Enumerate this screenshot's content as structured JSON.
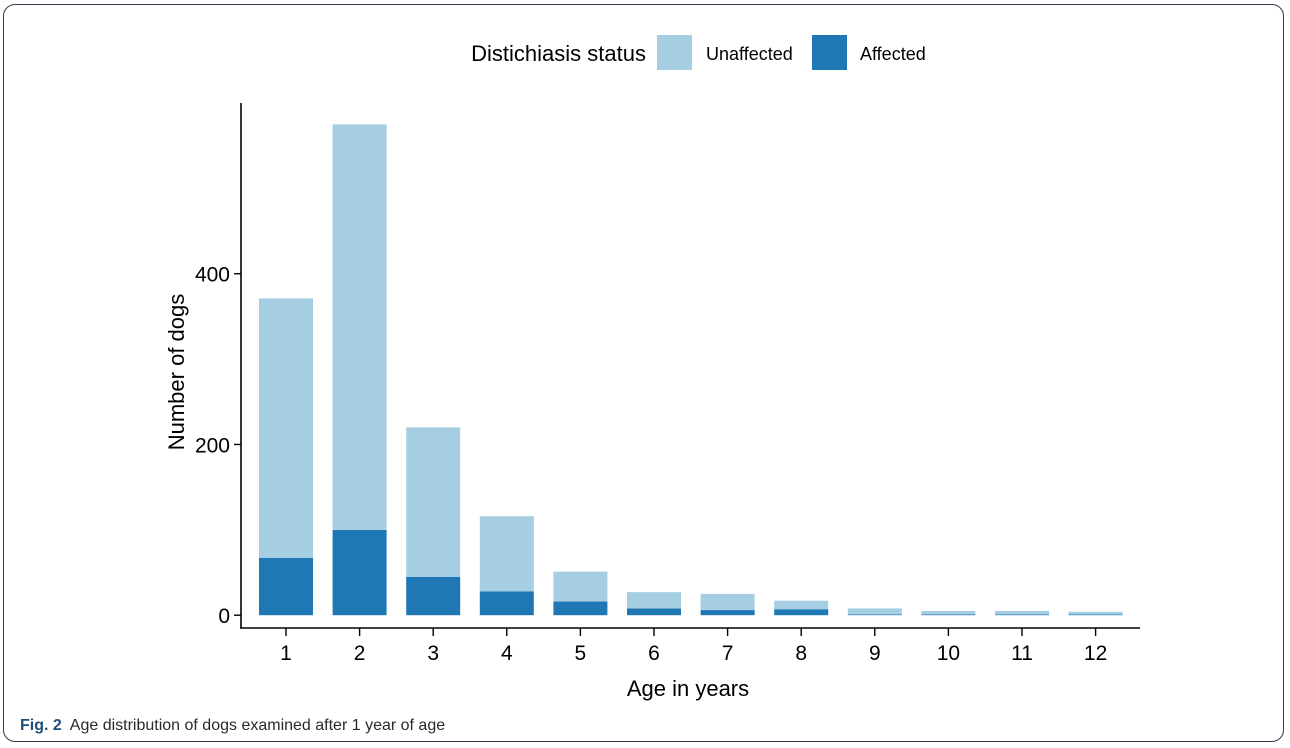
{
  "colors": {
    "unaffected": "#a6cee3",
    "affected": "#1f78b4",
    "axis": "#000000",
    "caption_label": "#1f4e79"
  },
  "caption": {
    "label": "Fig. 2",
    "text": "Age distribution of dogs examined after 1 year of age"
  },
  "chart_data": {
    "type": "bar",
    "stacked": true,
    "categories": [
      "1",
      "2",
      "3",
      "4",
      "5",
      "6",
      "7",
      "8",
      "9",
      "10",
      "11",
      "12"
    ],
    "series": [
      {
        "name": "Affected",
        "values": [
          67,
          100,
          45,
          28,
          16,
          8,
          6,
          7,
          1,
          1,
          1,
          1
        ]
      },
      {
        "name": "Unaffected",
        "values": [
          304,
          475,
          175,
          88,
          35,
          19,
          19,
          10,
          7,
          4,
          4,
          3
        ]
      }
    ],
    "xlabel": "Age in years",
    "ylabel": "Number of dogs",
    "yticks": [
      0,
      200,
      400
    ],
    "ylim": [
      -15,
      600
    ],
    "legend": {
      "title": "Distichiasis status",
      "position": "top",
      "entries": [
        "Unaffected",
        "Affected"
      ]
    },
    "grid": false
  }
}
